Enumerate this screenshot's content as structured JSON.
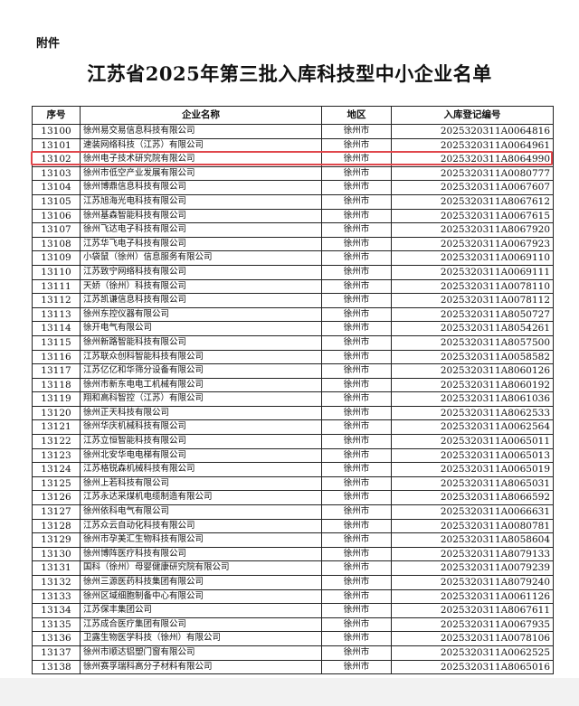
{
  "attachment_label": "附件",
  "title": "江苏省2025年第三批入库科技型中小企业名单",
  "highlight_color": "#e0474c",
  "highlighted_row": "13102",
  "table": {
    "headers": [
      "序号",
      "企业名称",
      "地区",
      "入库登记编号"
    ],
    "rows": [
      [
        "13100",
        "徐州易交易信息科技有限公司",
        "徐州市",
        "2025320311A0064816"
      ],
      [
        "13101",
        "速装网络科技（江苏）有限公司",
        "徐州市",
        "2025320311A0064961"
      ],
      [
        "13102",
        "徐州电子技术研究院有限公司",
        "徐州市",
        "2025320311A8064990"
      ],
      [
        "13103",
        "徐州市低空产业发展有限公司",
        "徐州市",
        "2025320311A0080777"
      ],
      [
        "13104",
        "徐州博鼎信息科技有限公司",
        "徐州市",
        "2025320311A0067607"
      ],
      [
        "13105",
        "江苏旭海光电科技有限公司",
        "徐州市",
        "2025320311A8067612"
      ],
      [
        "13106",
        "徐州基森智能科技有限公司",
        "徐州市",
        "2025320311A0067615"
      ],
      [
        "13107",
        "徐州飞达电子科技有限公司",
        "徐州市",
        "2025320311A8067920"
      ],
      [
        "13108",
        "江苏华飞电子科技有限公司",
        "徐州市",
        "2025320311A0067923"
      ],
      [
        "13109",
        "小袋鼠（徐州）信息服务有限公司",
        "徐州市",
        "2025320311A0069110"
      ],
      [
        "13110",
        "江苏致宁网络科技有限公司",
        "徐州市",
        "2025320311A0069111"
      ],
      [
        "13111",
        "天娇（徐州）科技有限公司",
        "徐州市",
        "2025320311A0078110"
      ],
      [
        "13112",
        "江苏凯谦信息科技有限公司",
        "徐州市",
        "2025320311A0078112"
      ],
      [
        "13113",
        "徐州东控仪器有限公司",
        "徐州市",
        "2025320311A8050727"
      ],
      [
        "13114",
        "徐开电气有限公司",
        "徐州市",
        "2025320311A8054261"
      ],
      [
        "13115",
        "徐州新路智能科技有限公司",
        "徐州市",
        "2025320311A8057500"
      ],
      [
        "13116",
        "江苏联众创科智能科技有限公司",
        "徐州市",
        "2025320311A0058582"
      ],
      [
        "13117",
        "江苏亿亿和华筛分设备有限公司",
        "徐州市",
        "2025320311A8060126"
      ],
      [
        "13118",
        "徐州市新东电电工机械有限公司",
        "徐州市",
        "2025320311A8060192"
      ],
      [
        "13119",
        "翔和高科智控（江苏）有限公司",
        "徐州市",
        "2025320311A8061036"
      ],
      [
        "13120",
        "徐州正天科技有限公司",
        "徐州市",
        "2025320311A8062533"
      ],
      [
        "13121",
        "徐州华庆机械科技有限公司",
        "徐州市",
        "2025320311A0062564"
      ],
      [
        "13122",
        "江苏立恒智能科技有限公司",
        "徐州市",
        "2025320311A0065011"
      ],
      [
        "13123",
        "徐州北安华电电梯有限公司",
        "徐州市",
        "2025320311A0065013"
      ],
      [
        "13124",
        "江苏格锐森机械科技有限公司",
        "徐州市",
        "2025320311A0065019"
      ],
      [
        "13125",
        "徐州上若科技有限公司",
        "徐州市",
        "2025320311A8065031"
      ],
      [
        "13126",
        "江苏永达采煤机电缆制造有限公司",
        "徐州市",
        "2025320311A8066592"
      ],
      [
        "13127",
        "徐州依科电气有限公司",
        "徐州市",
        "2025320311A0066631"
      ],
      [
        "13128",
        "江苏众云自动化科技有限公司",
        "徐州市",
        "2025320311A0080781"
      ],
      [
        "13129",
        "徐州市孕美汇生物科技有限公司",
        "徐州市",
        "2025320311A8058604"
      ],
      [
        "13130",
        "徐州博阵医疗科技有限公司",
        "徐州市",
        "2025320311A8079133"
      ],
      [
        "13131",
        "国科（徐州）母婴健康研究院有限公司",
        "徐州市",
        "2025320311A0079239"
      ],
      [
        "13132",
        "徐州三源医药科技集团有限公司",
        "徐州市",
        "2025320311A8079240"
      ],
      [
        "13133",
        "徐州区域细胞制备中心有限公司",
        "徐州市",
        "2025320311A0061126"
      ],
      [
        "13134",
        "江苏保丰集团公司",
        "徐州市",
        "2025320311A8067611"
      ],
      [
        "13135",
        "江苏成合医疗集团有限公司",
        "徐州市",
        "2025320311A0067935"
      ],
      [
        "13136",
        "卫露生物医学科技（徐州）有限公司",
        "徐州市",
        "2025320311A0078106"
      ],
      [
        "13137",
        "徐州市顺达铝塑门窗有限公司",
        "徐州市",
        "2025320311A0062525"
      ],
      [
        "13138",
        "徐州赛孚瑞科高分子材料有限公司",
        "徐州市",
        "2025320311A8065016"
      ]
    ]
  }
}
